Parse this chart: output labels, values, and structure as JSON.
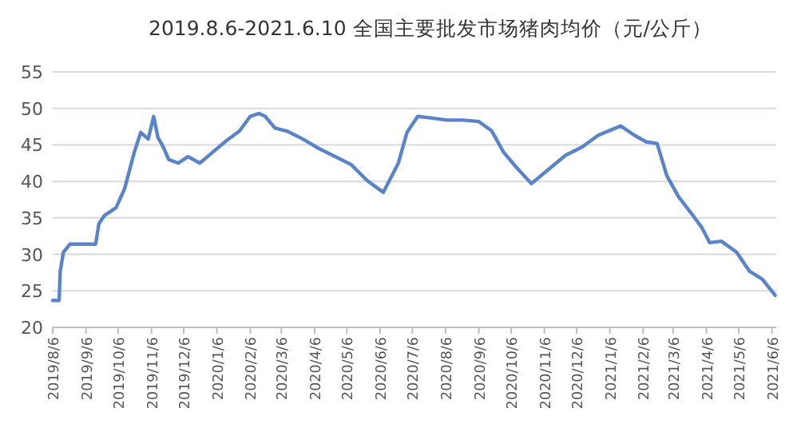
{
  "chart_data": {
    "type": "line",
    "title": "2019.8.6-2021.6.10 全国主要批发市场猪肉均价（元/公斤）",
    "x": [
      "2019-08-06",
      "2019-08-12",
      "2019-08-13",
      "2019-08-16",
      "2019-08-22",
      "2019-09-15",
      "2019-09-18",
      "2019-09-23",
      "2019-10-04",
      "2019-10-12",
      "2019-10-21",
      "2019-10-27",
      "2019-11-03",
      "2019-11-08",
      "2019-11-12",
      "2019-11-17",
      "2019-11-22",
      "2019-12-01",
      "2019-12-10",
      "2019-12-21",
      "2020-01-02",
      "2020-01-15",
      "2020-01-27",
      "2020-02-06",
      "2020-02-14",
      "2020-02-20",
      "2020-02-29",
      "2020-03-11",
      "2020-03-26",
      "2020-04-10",
      "2020-04-25",
      "2020-05-10",
      "2020-05-25",
      "2020-06-09",
      "2020-06-23",
      "2020-07-01",
      "2020-07-11",
      "2020-07-23",
      "2020-08-07",
      "2020-08-22",
      "2020-09-06",
      "2020-09-18",
      "2020-09-29",
      "2020-10-11",
      "2020-10-25",
      "2020-11-12",
      "2020-11-26",
      "2020-12-11",
      "2020-12-26",
      "2021-01-16",
      "2021-01-29",
      "2021-02-09",
      "2021-02-19",
      "2021-02-28",
      "2021-03-11",
      "2021-03-22",
      "2021-04-02",
      "2021-04-09",
      "2021-04-20",
      "2021-05-04",
      "2021-05-16",
      "2021-05-28",
      "2021-06-09"
    ],
    "series": [
      {
        "color": "#5b83c7",
        "values": [
          23.7,
          23.7,
          27.7,
          30.3,
          31.4,
          31.4,
          34.2,
          35.3,
          36.4,
          39,
          44,
          46.7,
          45.8,
          48.9,
          46,
          44.7,
          43,
          42.5,
          43.4,
          42.5,
          44,
          45.6,
          46.9,
          48.9,
          49.3,
          48.9,
          47.3,
          46.9,
          45.8,
          44.5,
          43.4,
          42.3,
          40.1,
          38.5,
          42.5,
          46.7,
          48.9,
          48.7,
          48.4,
          48.4,
          48.2,
          46.9,
          44,
          41.9,
          39.7,
          41.9,
          43.6,
          44.7,
          46.3,
          47.6,
          46.3,
          45.4,
          45.2,
          40.8,
          37.9,
          35.8,
          33.6,
          31.6,
          31.8,
          30.3,
          27.7,
          26.6,
          24.4
        ]
      }
    ],
    "xlim": [
      "2019-08-06",
      "2021-06-10"
    ],
    "xticks": [
      {
        "value": "2019-08-06",
        "label": "2019/8/6"
      },
      {
        "value": "2019-09-06",
        "label": "2019/9/6"
      },
      {
        "value": "2019-10-06",
        "label": "2019/10/6"
      },
      {
        "value": "2019-11-06",
        "label": "2019/11/6"
      },
      {
        "value": "2019-12-06",
        "label": "2019/12/6"
      },
      {
        "value": "2020-01-06",
        "label": "2020/1/6"
      },
      {
        "value": "2020-02-06",
        "label": "2020/2/6"
      },
      {
        "value": "2020-03-06",
        "label": "2020/3/6"
      },
      {
        "value": "2020-04-06",
        "label": "2020/4/6"
      },
      {
        "value": "2020-05-06",
        "label": "2020/5/6"
      },
      {
        "value": "2020-06-06",
        "label": "2020/6/6"
      },
      {
        "value": "2020-07-06",
        "label": "2020/7/6"
      },
      {
        "value": "2020-08-06",
        "label": "2020/8/6"
      },
      {
        "value": "2020-09-06",
        "label": "2020/9/6"
      },
      {
        "value": "2020-10-06",
        "label": "2020/10/6"
      },
      {
        "value": "2020-11-06",
        "label": "2020/11/6"
      },
      {
        "value": "2020-12-06",
        "label": "2020/12/6"
      },
      {
        "value": "2021-01-06",
        "label": "2021/1/6"
      },
      {
        "value": "2021-02-06",
        "label": "2021/2/6"
      },
      {
        "value": "2021-03-06",
        "label": "2021/3/6"
      },
      {
        "value": "2021-04-06",
        "label": "2021/4/6"
      },
      {
        "value": "2021-05-06",
        "label": "2021/5/6"
      },
      {
        "value": "2021-06-06",
        "label": "2021/6/6"
      }
    ],
    "ylim": [
      20,
      55
    ],
    "yticks": [
      20,
      25,
      30,
      35,
      40,
      45,
      50,
      55
    ],
    "grid": "y",
    "marker": "none",
    "line_style": "solid"
  }
}
